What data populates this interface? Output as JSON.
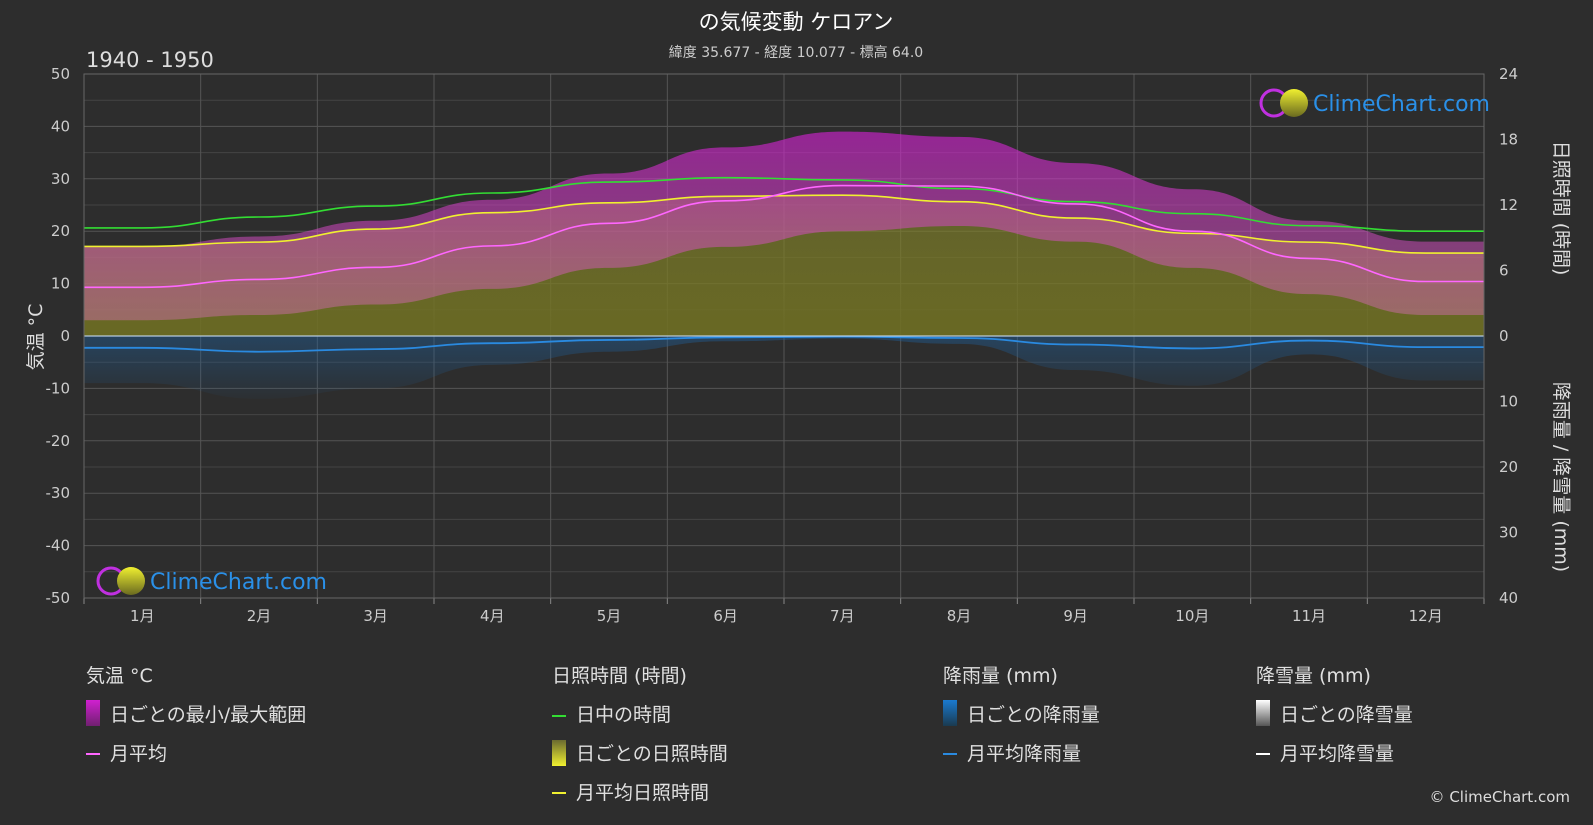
{
  "title": "の気候変動 ケロアン",
  "subtitle": "緯度 35.677 - 経度 10.077 - 標高 64.0",
  "period": "1940 - 1950",
  "brand": "ClimeChart.com",
  "copyright": "© ClimeChart.com",
  "colors": {
    "background": "#2d2d2d",
    "temp_range": "#d020d0",
    "temp_mean": "#ff66ff",
    "daylight": "#33dd33",
    "sunshine_fill": "#8a8a2a",
    "sunshine_mean": "#f0f030",
    "rain": "#1a7ad0",
    "rain_mean": "#2a8ae0",
    "snow_mean": "#ffffff",
    "brand": "#2a90e8"
  },
  "chart_data": {
    "type": "area",
    "categories": [
      "1月",
      "2月",
      "3月",
      "4月",
      "5月",
      "6月",
      "7月",
      "8月",
      "9月",
      "10月",
      "11月",
      "12月"
    ],
    "left_axis": {
      "label": "気温 °C",
      "min": -50,
      "max": 50,
      "ticks": [
        50,
        40,
        30,
        20,
        10,
        0,
        -10,
        -20,
        -30,
        -40,
        -50
      ]
    },
    "right_axis_sun": {
      "label": "日照時間 (時間)",
      "min": 0,
      "max": 24,
      "ticks": [
        24,
        18,
        12,
        6,
        0
      ]
    },
    "right_axis_rain": {
      "label": "降雨量 / 降雪量 (mm)",
      "min": 0,
      "max": 40,
      "ticks": [
        10,
        20,
        30,
        40
      ]
    },
    "series": [
      {
        "name": "日中の時間",
        "unit": "h",
        "values": [
          9.9,
          10.9,
          11.9,
          13.1,
          14.1,
          14.5,
          14.3,
          13.5,
          12.3,
          11.2,
          10.1,
          9.6
        ]
      },
      {
        "name": "月平均日照時間",
        "unit": "h",
        "values": [
          8.2,
          8.6,
          9.8,
          11.3,
          12.2,
          12.8,
          12.9,
          12.3,
          10.8,
          9.4,
          8.6,
          7.6
        ]
      },
      {
        "name": "月平均",
        "unit": "°C",
        "values": [
          9.3,
          10.8,
          13.1,
          17.2,
          21.5,
          25.8,
          28.7,
          28.6,
          25.2,
          20.0,
          14.8,
          10.4
        ]
      },
      {
        "name": "月平均降雨量",
        "unit": "mm",
        "values": [
          1.8,
          2.4,
          2.0,
          1.1,
          0.6,
          0.2,
          0.1,
          0.3,
          1.3,
          1.9,
          0.7,
          1.7
        ]
      },
      {
        "name": "月平均降雪量",
        "unit": "mm",
        "values": [
          0,
          0,
          0,
          0,
          0,
          0,
          0,
          0,
          0,
          0,
          0,
          0
        ]
      }
    ],
    "daily_temp_range_envelope": {
      "min": [
        3,
        4,
        6,
        9,
        13,
        17,
        20,
        21,
        18,
        13,
        8,
        4
      ],
      "max": [
        17,
        19,
        22,
        26,
        31,
        36,
        39,
        38,
        33,
        28,
        22,
        18
      ]
    },
    "grid": true
  },
  "legend": {
    "temperature": {
      "head": "気温 °C",
      "items": [
        "日ごとの最小/最大範囲",
        "月平均"
      ]
    },
    "sunshine": {
      "head": "日照時間 (時間)",
      "items": [
        "日中の時間",
        "日ごとの日照時間",
        "月平均日照時間"
      ]
    },
    "rain": {
      "head": "降雨量 (mm)",
      "items": [
        "日ごとの降雨量",
        "月平均降雨量"
      ]
    },
    "snow": {
      "head": "降雪量 (mm)",
      "items": [
        "日ごとの降雪量",
        "月平均降雪量"
      ]
    }
  }
}
